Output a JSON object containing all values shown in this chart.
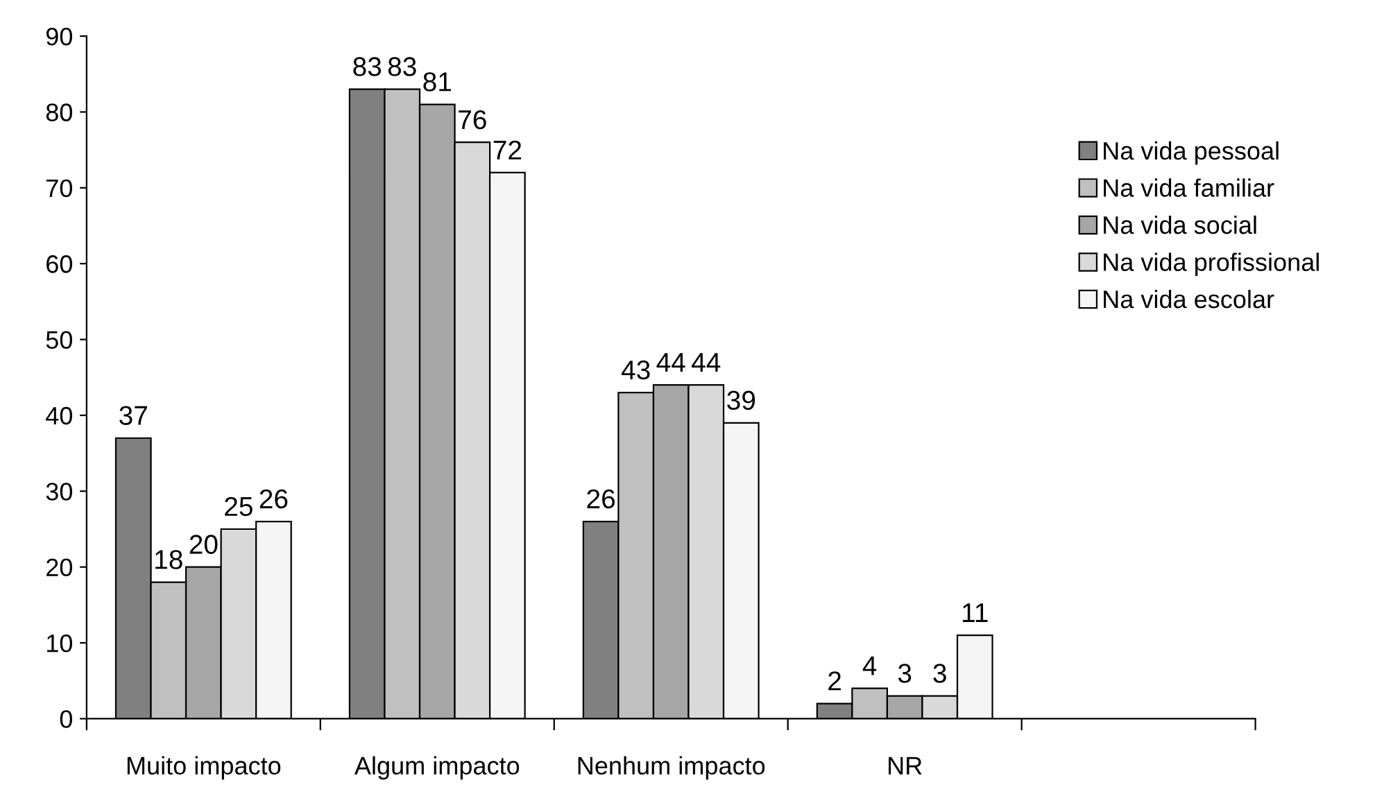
{
  "chart_data": {
    "type": "bar",
    "categories": [
      "Muito impacto",
      "Algum impacto",
      "Nenhum impacto",
      "NR",
      null
    ],
    "series": [
      {
        "name": "Na vida pessoal",
        "color": "#808080",
        "values": [
          37,
          83,
          26,
          2,
          null
        ]
      },
      {
        "name": "Na vida familiar",
        "color": "#c0c0c0",
        "values": [
          18,
          83,
          43,
          4,
          null
        ]
      },
      {
        "name": "Na vida social",
        "color": "#a6a6a6",
        "values": [
          20,
          81,
          44,
          3,
          null
        ]
      },
      {
        "name": "Na vida profissional",
        "color": "#d9d9d9",
        "values": [
          25,
          76,
          44,
          3,
          null
        ]
      },
      {
        "name": "Na vida escolar",
        "color": "#f5f5f5",
        "values": [
          26,
          72,
          39,
          11,
          null
        ]
      }
    ],
    "ylim": [
      0,
      90
    ],
    "yticks": [
      0,
      10,
      20,
      30,
      40,
      50,
      60,
      70,
      80,
      90
    ],
    "data_labels": true,
    "grid": false,
    "legend": "right"
  }
}
